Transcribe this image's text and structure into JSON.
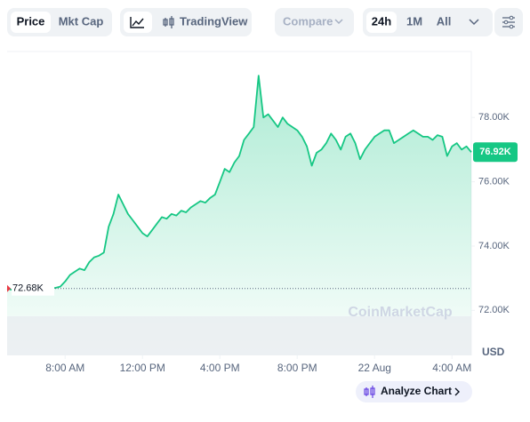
{
  "toolbar": {
    "tabs": [
      "Price",
      "Mkt Cap"
    ],
    "tradingview": "TradingView",
    "compare": "Compare",
    "ranges": [
      "24h",
      "1M",
      "All"
    ]
  },
  "chart_data": {
    "type": "line",
    "color": "#16c784",
    "values": [
      72680,
      72640,
      72700,
      72660,
      72620,
      72680,
      72650,
      72700,
      72640,
      72690,
      72700,
      72740,
      72900,
      73100,
      73200,
      73300,
      73250,
      73500,
      73650,
      73700,
      73800,
      74600,
      75000,
      75600,
      75300,
      75000,
      74800,
      74600,
      74400,
      74300,
      74500,
      74700,
      74900,
      74850,
      75000,
      74950,
      75100,
      75050,
      75200,
      75300,
      75400,
      75350,
      75500,
      75600,
      76000,
      76400,
      76300,
      76600,
      76800,
      77300,
      77500,
      77700,
      79300,
      78000,
      78100,
      77900,
      77700,
      78000,
      77800,
      77700,
      77600,
      77400,
      77100,
      76500,
      76900,
      77000,
      77200,
      77500,
      77300,
      77000,
      77400,
      77500,
      77200,
      76700,
      77000,
      77200,
      77400,
      77500,
      77600,
      77600,
      77200,
      77300,
      77400,
      77500,
      77600,
      77500,
      77400,
      77400,
      77300,
      77450,
      77400,
      76800,
      77100,
      77200,
      77000,
      77100,
      76920
    ],
    "xlim": [
      0,
      96
    ],
    "xticks": [
      {
        "value": 12,
        "label": "8:00 AM"
      },
      {
        "value": 28,
        "label": "12:00 PM"
      },
      {
        "value": 44,
        "label": "4:00 PM"
      },
      {
        "value": 60,
        "label": "8:00 PM"
      },
      {
        "value": 76,
        "label": "22 Aug"
      },
      {
        "value": 92,
        "label": "4:00 AM"
      }
    ],
    "ylim": [
      70600,
      80050
    ],
    "yticks": [
      {
        "value": 72000,
        "label": "72.00K"
      },
      {
        "value": 74000,
        "label": "74.00K"
      },
      {
        "value": 76000,
        "label": "76.00K"
      },
      {
        "value": 78000,
        "label": "78.00K"
      }
    ],
    "reference": {
      "value": 72680,
      "label": "72.68K"
    },
    "current_price": {
      "value": 76920,
      "label": "76.92K"
    },
    "y_unit": "USD",
    "watermark": "CoinMarketCap",
    "button": "Analyze Chart"
  }
}
